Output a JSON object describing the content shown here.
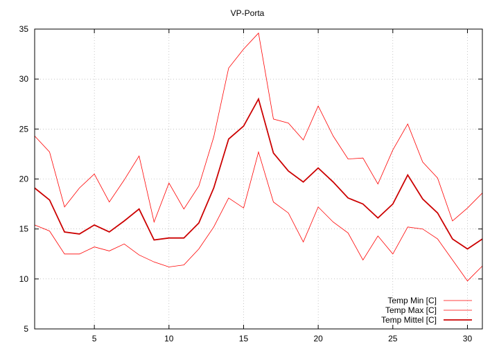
{
  "chart_data": {
    "type": "line",
    "title": "VP-Porta",
    "xlabel": "",
    "ylabel": "",
    "xlim": [
      1,
      31
    ],
    "ylim": [
      5,
      35
    ],
    "xticks": [
      5,
      10,
      15,
      20,
      25,
      30
    ],
    "yticks": [
      5,
      10,
      15,
      20,
      25,
      30,
      35
    ],
    "grid": true,
    "legend_position": "bottom-right",
    "x": [
      1,
      2,
      3,
      4,
      5,
      6,
      7,
      8,
      9,
      10,
      11,
      12,
      13,
      14,
      15,
      16,
      17,
      18,
      19,
      20,
      21,
      22,
      23,
      24,
      25,
      26,
      27,
      28,
      29,
      30,
      31
    ],
    "series": [
      {
        "name": "Temp Min [C]",
        "color": "#ff0000",
        "width": "thin",
        "values": [
          15.4,
          14.8,
          12.5,
          12.5,
          13.2,
          12.8,
          13.5,
          12.4,
          11.7,
          11.2,
          11.4,
          13.0,
          15.2,
          18.1,
          17.1,
          22.7,
          17.7,
          16.6,
          13.7,
          17.2,
          15.7,
          14.6,
          11.9,
          14.3,
          12.5,
          15.2,
          15.0,
          14.0,
          11.9,
          9.8,
          11.3
        ]
      },
      {
        "name": "Temp Max [C]",
        "color": "#ff0000",
        "width": "thin",
        "values": [
          24.3,
          22.7,
          17.2,
          19.1,
          20.5,
          17.7,
          19.9,
          22.3,
          15.7,
          19.6,
          17.0,
          19.3,
          24.2,
          31.1,
          33.0,
          34.6,
          26.0,
          25.6,
          23.9,
          27.3,
          24.3,
          22.0,
          22.1,
          19.5,
          22.9,
          25.5,
          21.7,
          20.1,
          15.8,
          17.1,
          18.6
        ]
      },
      {
        "name": "Temp Mittel [C]",
        "color": "#cc0000",
        "width": "thick",
        "values": [
          19.1,
          17.9,
          14.7,
          14.5,
          15.4,
          14.7,
          15.8,
          17.0,
          13.9,
          14.1,
          14.1,
          15.6,
          19.1,
          24.0,
          25.3,
          28.0,
          22.6,
          20.8,
          19.7,
          21.1,
          19.7,
          18.1,
          17.5,
          16.1,
          17.5,
          20.4,
          18.0,
          16.6,
          14.0,
          13.0,
          14.0
        ]
      }
    ]
  }
}
